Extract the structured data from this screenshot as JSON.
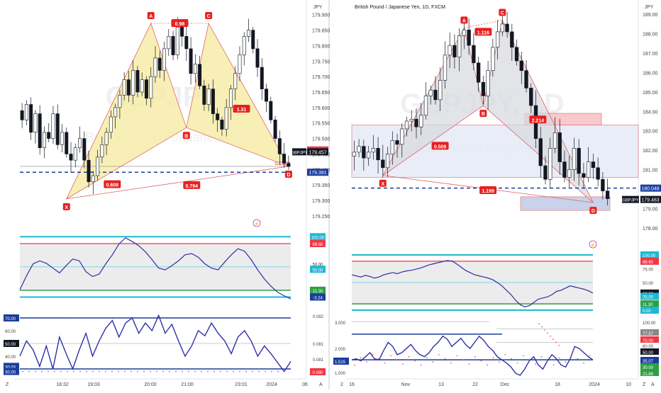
{
  "colors": {
    "up": "#ffffff",
    "down": "#131722",
    "pattern_fill": "#f5eba3",
    "pattern_line": "#e06666",
    "pattern_fill_right": "#d6d8de",
    "label_red": "#e8211f",
    "dashed_blue": "#1a3d9c",
    "osc_line": "#2f2fa8",
    "cyan": "#1fb8d1",
    "red": "#f23645",
    "green": "#2ea043",
    "zone_blue": "#dfe6f5",
    "zone_red": "#f7c9cc"
  },
  "header": {
    "left_price_label": "JPY",
    "right_title": "British Pound / Japanese Yen, 1D, FXCM",
    "right_price_label": "JPY",
    "watermark_left": "GBPJPY",
    "watermark_left_sub": "British Pound / Japanese Yen",
    "watermark_right": "GBPJPY, 1D",
    "watermark_right_sub": "British Pound / Japanese Yen"
  },
  "chart_data": [
    {
      "type": "candlestick",
      "panel": "left",
      "symbol": "GBPJPY",
      "x_ticks": [
        "18:32",
        "19:03",
        "20:00",
        "21:00",
        "23:01",
        "2024",
        "06"
      ],
      "y_ticks": [
        179.25,
        179.3,
        179.35,
        179.4,
        179.45,
        179.5,
        179.55,
        179.6,
        179.65,
        179.7,
        179.75,
        179.8,
        179.85,
        179.9
      ],
      "ylim": [
        179.22,
        179.92
      ],
      "last_price": "179.457",
      "level_price": "179.391",
      "high_price": "179.463",
      "pattern": "bearish bat",
      "pattern_points": [
        {
          "name": "X",
          "price": 179.305
        },
        {
          "name": "A",
          "price": 179.872
        },
        {
          "name": "B",
          "price": 179.535
        },
        {
          "name": "C",
          "price": 179.872
        },
        {
          "name": "D",
          "price": 179.41
        }
      ],
      "ratios": [
        "0.98",
        "1.31",
        "0.609",
        "0.794"
      ],
      "closes": [
        179.56,
        179.61,
        179.52,
        179.58,
        179.47,
        179.52,
        179.5,
        179.58,
        179.48,
        179.52,
        179.45,
        179.43,
        179.47,
        179.5,
        179.43,
        179.36,
        179.38,
        179.44,
        179.48,
        179.52,
        179.57,
        179.6,
        179.64,
        179.69,
        179.64,
        179.72,
        179.65,
        179.69,
        179.63,
        179.7,
        179.76,
        179.72,
        179.79,
        179.83,
        179.77,
        179.86,
        179.83,
        179.79,
        179.71,
        179.74,
        179.67,
        179.61,
        179.66,
        179.58,
        179.56,
        179.53,
        179.6,
        179.66,
        179.71,
        179.77,
        179.83,
        179.85,
        179.79,
        179.73,
        179.66,
        179.62,
        179.56,
        179.5,
        179.45,
        179.42,
        179.41
      ]
    },
    {
      "type": "line",
      "panel": "left-oscillator-1",
      "levels": [
        {
          "value": 100,
          "label": "100.00"
        },
        {
          "value": 88.6,
          "label": "88.60"
        },
        {
          "value": 50.0,
          "label": "50.00"
        },
        {
          "value": 11.3,
          "label": "11.30"
        },
        {
          "value": 0,
          "label": "0.00"
        }
      ],
      "last_label": "-3.24",
      "values": [
        12,
        35,
        55,
        60,
        56,
        48,
        40,
        52,
        63,
        60,
        42,
        34,
        38,
        55,
        70,
        88,
        98,
        92,
        85,
        75,
        62,
        48,
        45,
        52,
        60,
        70,
        72,
        66,
        55,
        48,
        45,
        58,
        70,
        80,
        76,
        62,
        45,
        30,
        18,
        8,
        2,
        -3
      ]
    },
    {
      "type": "line",
      "panel": "left-oscillator-2",
      "y_ticks": [
        "0.082",
        "0.081",
        "0.081",
        "0.080"
      ],
      "level_labels": [
        "70.00",
        "60.00",
        "50.00",
        "40.00",
        "30.03",
        "30.00"
      ],
      "last_label": "0.080",
      "values": [
        40,
        52,
        45,
        32,
        48,
        30,
        55,
        42,
        30,
        45,
        58,
        40,
        52,
        62,
        68,
        55,
        66,
        70,
        58,
        66,
        60,
        72,
        58,
        65,
        52,
        40,
        48,
        60,
        56,
        66,
        58,
        52,
        42,
        55,
        60,
        52,
        40,
        48,
        42,
        35,
        28,
        36
      ]
    },
    {
      "type": "candlestick",
      "panel": "right",
      "symbol": "GBPJPY",
      "x_ticks": [
        "16",
        "Nov",
        "13",
        "22",
        "Dec",
        "18",
        "2024",
        "10"
      ],
      "y_ticks": [
        178.0,
        179.0,
        180.0,
        181.0,
        182.0,
        183.0,
        184.0,
        185.0,
        186.0,
        187.0,
        188.0,
        189.0
      ],
      "ylim": [
        177.7,
        189.3
      ],
      "last_price": "179.463",
      "level_price": "180.048",
      "pattern": "bearish bat",
      "pattern_points": [
        {
          "name": "X",
          "price": 180.7
        },
        {
          "name": "A",
          "price": 188.3
        },
        {
          "name": "B",
          "price": 184.3
        },
        {
          "name": "C",
          "price": 188.7
        },
        {
          "name": "D",
          "price": 179.3
        }
      ],
      "ratios": [
        "1.116",
        "0.509",
        "2.214",
        "1.199"
      ],
      "closes": [
        181.9,
        182.2,
        181.6,
        181.9,
        182.1,
        181.5,
        181.1,
        181.8,
        182.5,
        182.3,
        183.1,
        183.5,
        183.6,
        183.2,
        183.8,
        184.8,
        185.1,
        184.6,
        185.6,
        186.9,
        187.4,
        186.8,
        187.9,
        188.2,
        187.4,
        186.5,
        185.5,
        184.8,
        186.1,
        187.3,
        188.1,
        188.5,
        188.1,
        187.3,
        186.6,
        186.1,
        185.2,
        184.3,
        182.6,
        181.2,
        180.5,
        182.1,
        182.9,
        181.4,
        180.6,
        181.0,
        182.1,
        180.8,
        180.6,
        181.4,
        181.1,
        180.5,
        179.9,
        179.5
      ]
    },
    {
      "type": "line",
      "panel": "right-oscillator-1",
      "y_ticks": [
        "100.00",
        "88.60",
        "75.00",
        "50.00",
        "30.93",
        "25.00",
        "11.30",
        "0.00"
      ],
      "values": [
        64,
        62,
        60,
        63,
        61,
        58,
        60,
        64,
        66,
        68,
        66,
        69,
        71,
        72,
        74,
        76,
        79,
        82,
        84,
        86,
        88,
        90,
        89,
        84,
        78,
        72,
        68,
        64,
        62,
        60,
        58,
        55,
        50,
        44,
        36,
        28,
        18,
        10,
        6,
        8,
        14,
        20,
        22,
        24,
        28,
        34,
        36,
        40,
        44,
        42,
        40,
        38,
        35,
        31
      ]
    },
    {
      "type": "line",
      "panel": "right-oscillator-2",
      "y_ticks_left": [
        "3.000",
        "2.000",
        "1.515",
        "1.000"
      ],
      "y_ticks_right": [
        "100.00",
        "77.57",
        "70.00",
        "60.00",
        "50.00",
        "35.07",
        "30.00",
        "21.89"
      ],
      "values": [
        35,
        36,
        34,
        38,
        42,
        36,
        35,
        44,
        52,
        48,
        40,
        42,
        46,
        50,
        44,
        40,
        38,
        42,
        48,
        52,
        58,
        55,
        48,
        52,
        56,
        50,
        46,
        52,
        58,
        54,
        48,
        44,
        38,
        35,
        32,
        28,
        22,
        20,
        26,
        34,
        38,
        30,
        26,
        34,
        40,
        36,
        30,
        28,
        36,
        48,
        46,
        42,
        38,
        35
      ]
    }
  ],
  "axes": {
    "left_bottom_z": "Z",
    "right_bottom_z": "Z",
    "left_bottom_a": "A",
    "right_bottom_a": "A",
    "right_bottom_2": "2"
  },
  "price_tags": {
    "left_symbol_tag": "GBPJPY",
    "right_symbol_tag": "GBPJPY",
    "left_osc1_labels": [
      "100.00",
      "88.60",
      "50.00",
      "50.00",
      "11.30",
      "-3.24"
    ],
    "left_osc2_small": "0.082"
  }
}
